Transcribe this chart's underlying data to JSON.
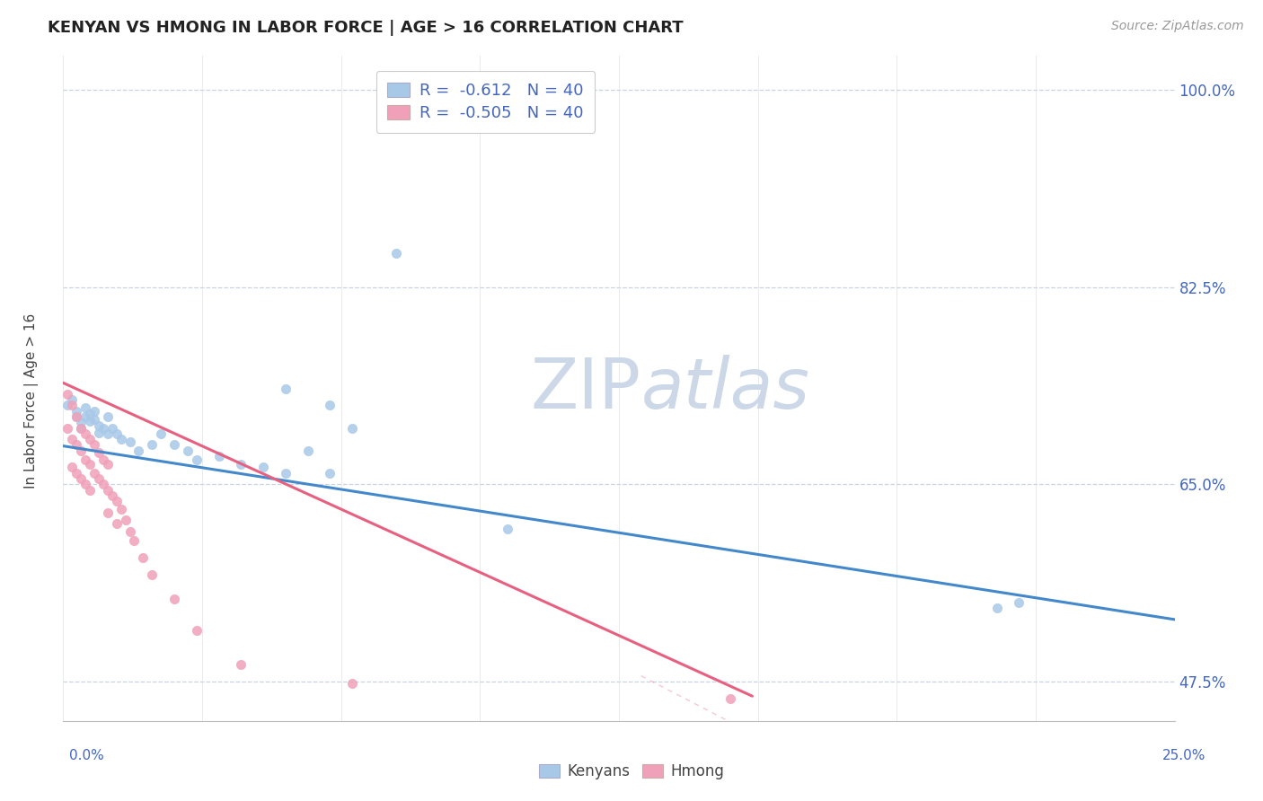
{
  "title": "KENYAN VS HMONG IN LABOR FORCE | AGE > 16 CORRELATION CHART",
  "source": "Source: ZipAtlas.com",
  "ylabel": "In Labor Force | Age > 16",
  "xlim": [
    0.0,
    0.25
  ],
  "ylim": [
    0.44,
    1.03
  ],
  "kenyan_R": -0.612,
  "kenyan_N": 40,
  "hmong_R": -0.505,
  "hmong_N": 40,
  "kenyan_color": "#a8c8e8",
  "hmong_color": "#f0a0b8",
  "kenyan_line_color": "#4488cc",
  "hmong_line_color": "#e86080",
  "watermark_color": "#ccd8e8",
  "background_color": "#ffffff",
  "grid_color": "#c8d4e4",
  "legend_text_color": "#4466bb",
  "ytick_positions": [
    0.475,
    0.65,
    0.825,
    1.0
  ],
  "ytick_labels": [
    "47.5%",
    "65.0%",
    "82.5%",
    "100.0%"
  ],
  "kenyan_x": [
    0.001,
    0.002,
    0.003,
    0.003,
    0.004,
    0.004,
    0.005,
    0.005,
    0.006,
    0.006,
    0.007,
    0.007,
    0.008,
    0.008,
    0.009,
    0.01,
    0.01,
    0.011,
    0.012,
    0.013,
    0.015,
    0.017,
    0.02,
    0.022,
    0.025,
    0.028,
    0.03,
    0.035,
    0.04,
    0.045,
    0.05,
    0.055,
    0.06,
    0.065,
    0.05,
    0.06,
    0.075,
    0.1,
    0.21,
    0.215
  ],
  "kenyan_y": [
    0.72,
    0.725,
    0.71,
    0.715,
    0.705,
    0.7,
    0.71,
    0.718,
    0.712,
    0.706,
    0.715,
    0.708,
    0.702,
    0.696,
    0.7,
    0.71,
    0.695,
    0.7,
    0.695,
    0.69,
    0.688,
    0.68,
    0.685,
    0.695,
    0.685,
    0.68,
    0.672,
    0.675,
    0.668,
    0.665,
    0.66,
    0.68,
    0.66,
    0.7,
    0.735,
    0.72,
    0.855,
    0.61,
    0.54,
    0.545
  ],
  "hmong_x": [
    0.001,
    0.001,
    0.002,
    0.002,
    0.002,
    0.003,
    0.003,
    0.003,
    0.004,
    0.004,
    0.004,
    0.005,
    0.005,
    0.005,
    0.006,
    0.006,
    0.006,
    0.007,
    0.007,
    0.008,
    0.008,
    0.009,
    0.009,
    0.01,
    0.01,
    0.01,
    0.011,
    0.012,
    0.012,
    0.013,
    0.014,
    0.015,
    0.016,
    0.018,
    0.02,
    0.025,
    0.03,
    0.04,
    0.065,
    0.15
  ],
  "hmong_y": [
    0.73,
    0.7,
    0.72,
    0.69,
    0.665,
    0.71,
    0.685,
    0.66,
    0.7,
    0.68,
    0.655,
    0.695,
    0.672,
    0.65,
    0.69,
    0.668,
    0.645,
    0.685,
    0.66,
    0.678,
    0.655,
    0.672,
    0.65,
    0.668,
    0.645,
    0.625,
    0.64,
    0.635,
    0.615,
    0.628,
    0.618,
    0.608,
    0.6,
    0.585,
    0.57,
    0.548,
    0.52,
    0.49,
    0.473,
    0.46
  ],
  "kenyan_line_x": [
    0.0,
    0.25
  ],
  "kenyan_line_y": [
    0.684,
    0.53
  ],
  "hmong_line_x": [
    0.0,
    0.155
  ],
  "hmong_line_y": [
    0.74,
    0.462
  ]
}
